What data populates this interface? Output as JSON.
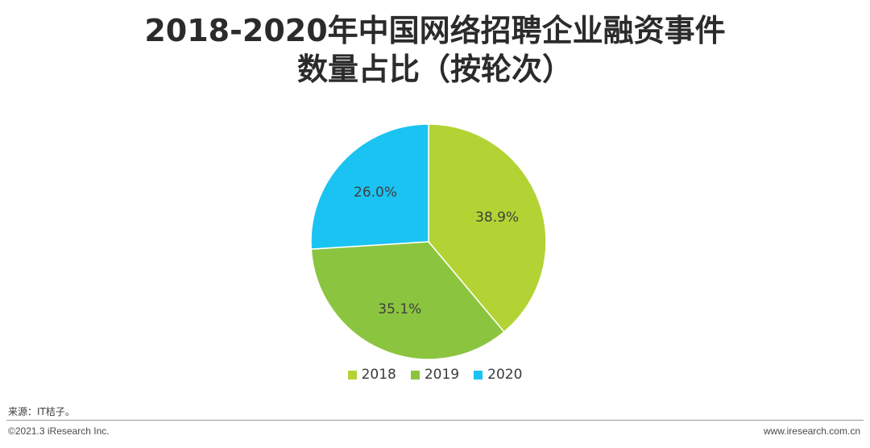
{
  "title": {
    "line1": "2018-2020年中国网络招聘企业融资事件",
    "line2": "数量占比（按轮次）"
  },
  "chart_data": {
    "type": "pie",
    "title": "2018-2020年中国网络招聘企业融资事件数量占比（按轮次）",
    "categories": [
      "2018",
      "2019",
      "2020"
    ],
    "values": [
      38.9,
      35.1,
      26.0
    ],
    "labels": [
      "38.9%",
      "35.1%",
      "26.0%"
    ],
    "colors": [
      "#b3d334",
      "#8bc53f",
      "#1bc3f2"
    ],
    "legend_position": "bottom"
  },
  "footer": {
    "source": "来源：IT桔子。",
    "copyright": "©2021.3 iResearch Inc.",
    "website": "www.iresearch.com.cn"
  }
}
